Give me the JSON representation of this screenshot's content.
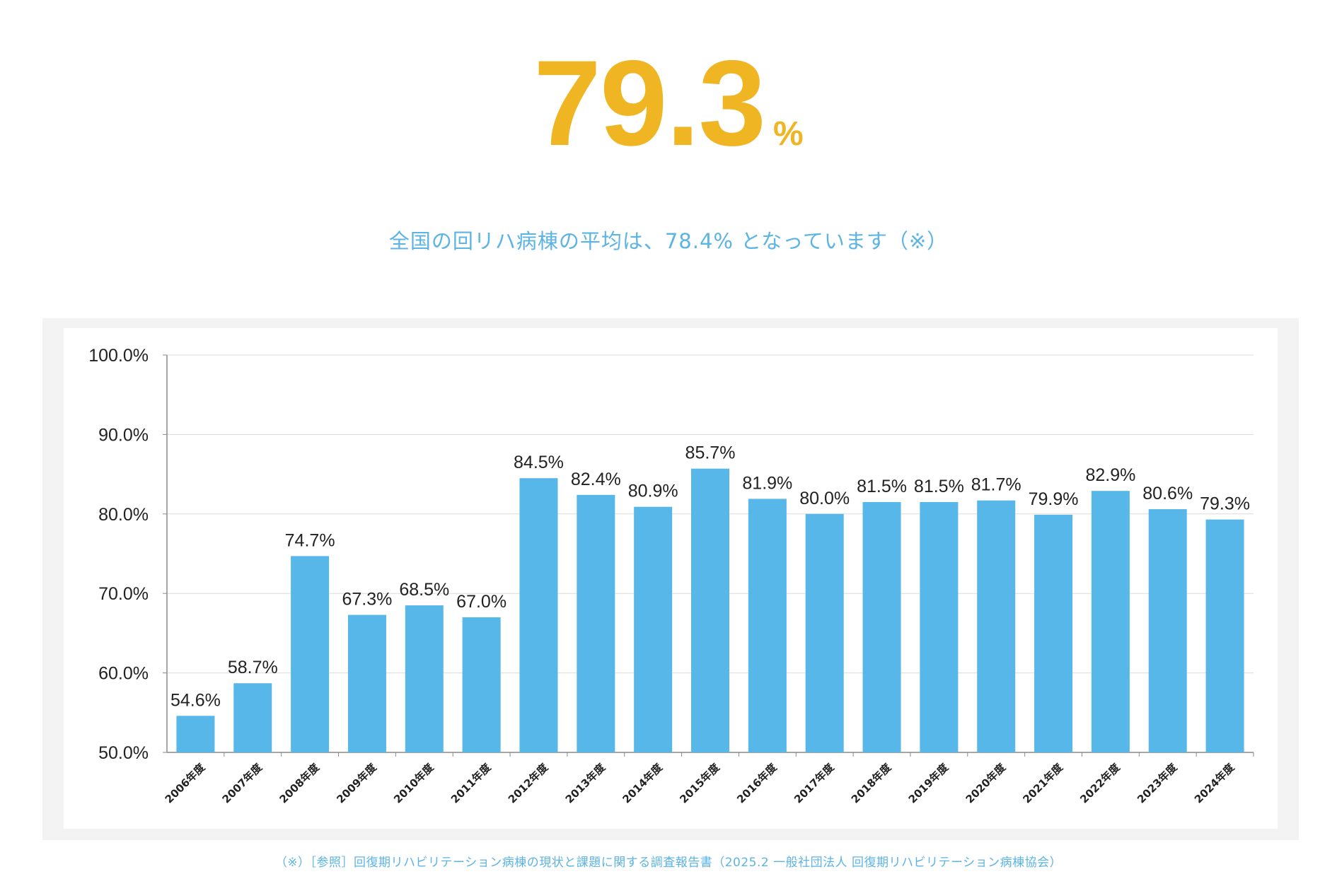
{
  "hero": {
    "value": "79.3",
    "unit": "%"
  },
  "subtitle": "全国の回リハ病棟の平均は、78.4% となっています（※）",
  "footnote": "（※）［参照］回復期リハビリテーション病棟の現状と課題に関する調査報告書（2025.2 一般社団法人 回復期リハビリテーション病棟協会）",
  "colors": {
    "accent": "#efb522",
    "subtitle": "#5bb4e4",
    "bar": "#56b7e8",
    "frame": "#f3f3f3",
    "grid": "#dcdcdc",
    "axis": "#8a8a8a",
    "text": "#222222"
  },
  "chart_data": {
    "type": "bar",
    "title": "",
    "xlabel": "",
    "ylabel": "",
    "ylim": [
      50,
      100
    ],
    "yticks": [
      "100.0%",
      "90.0%",
      "80.0%",
      "70.0%",
      "60.0%",
      "50.0%"
    ],
    "ytick_values": [
      100,
      90,
      80,
      70,
      60,
      50
    ],
    "grid": true,
    "categories": [
      "2006年度",
      "2007年度",
      "2008年度",
      "2009年度",
      "2010年度",
      "2011年度",
      "2012年度",
      "2013年度",
      "2014年度",
      "2015年度",
      "2016年度",
      "2017年度",
      "2018年度",
      "2019年度",
      "2020年度",
      "2021年度",
      "2022年度",
      "2023年度",
      "2024年度"
    ],
    "values": [
      54.6,
      58.7,
      74.7,
      67.3,
      68.5,
      67.0,
      84.5,
      82.4,
      80.9,
      85.7,
      81.9,
      80.0,
      81.5,
      81.5,
      81.7,
      79.9,
      82.9,
      80.6,
      79.3
    ],
    "data_labels": [
      "54.6%",
      "58.7%",
      "74.7%",
      "67.3%",
      "68.5%",
      "67.0%",
      "84.5%",
      "82.4%",
      "80.9%",
      "85.7%",
      "81.9%",
      "80.0%",
      "81.5%",
      "81.5%",
      "81.7%",
      "79.9%",
      "82.9%",
      "80.6%",
      "79.3%"
    ]
  }
}
